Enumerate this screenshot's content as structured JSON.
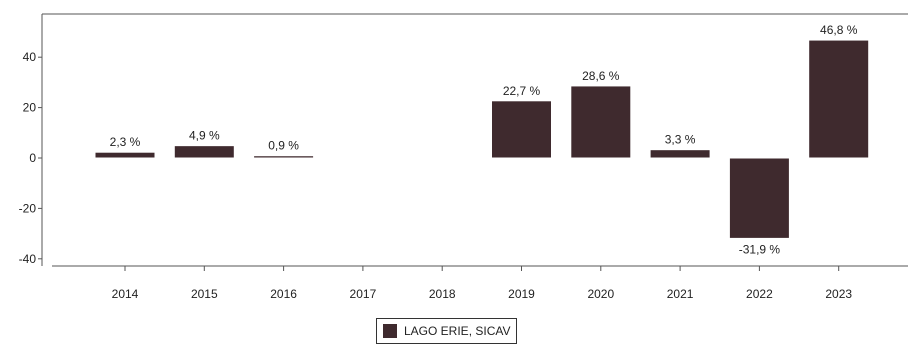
{
  "chart_data": {
    "type": "bar",
    "categories": [
      "2014",
      "2015",
      "2016",
      "2017",
      "2018",
      "2019",
      "2020",
      "2021",
      "2022",
      "2023"
    ],
    "series": [
      {
        "name": "LAGO ERIE, SICAV",
        "values": [
          2.3,
          4.9,
          0.9,
          null,
          null,
          22.7,
          28.6,
          3.3,
          -31.9,
          46.8
        ],
        "labels": [
          "2,3 %",
          "4,9 %",
          "0,9 %",
          "",
          "",
          "22,7 %",
          "28,6 %",
          "3,3 %",
          "-31,9 %",
          "46,8 %"
        ],
        "color": "#3f2a2e"
      }
    ],
    "yticks": [
      40,
      20,
      0,
      -20,
      -40
    ],
    "ytick_labels": [
      "40",
      "20",
      "0",
      "-20",
      "-40"
    ],
    "ylim": [
      -42,
      56
    ],
    "grid": false,
    "legend_position": "bottom-center"
  },
  "legend": {
    "label": "LAGO ERIE, SICAV"
  }
}
